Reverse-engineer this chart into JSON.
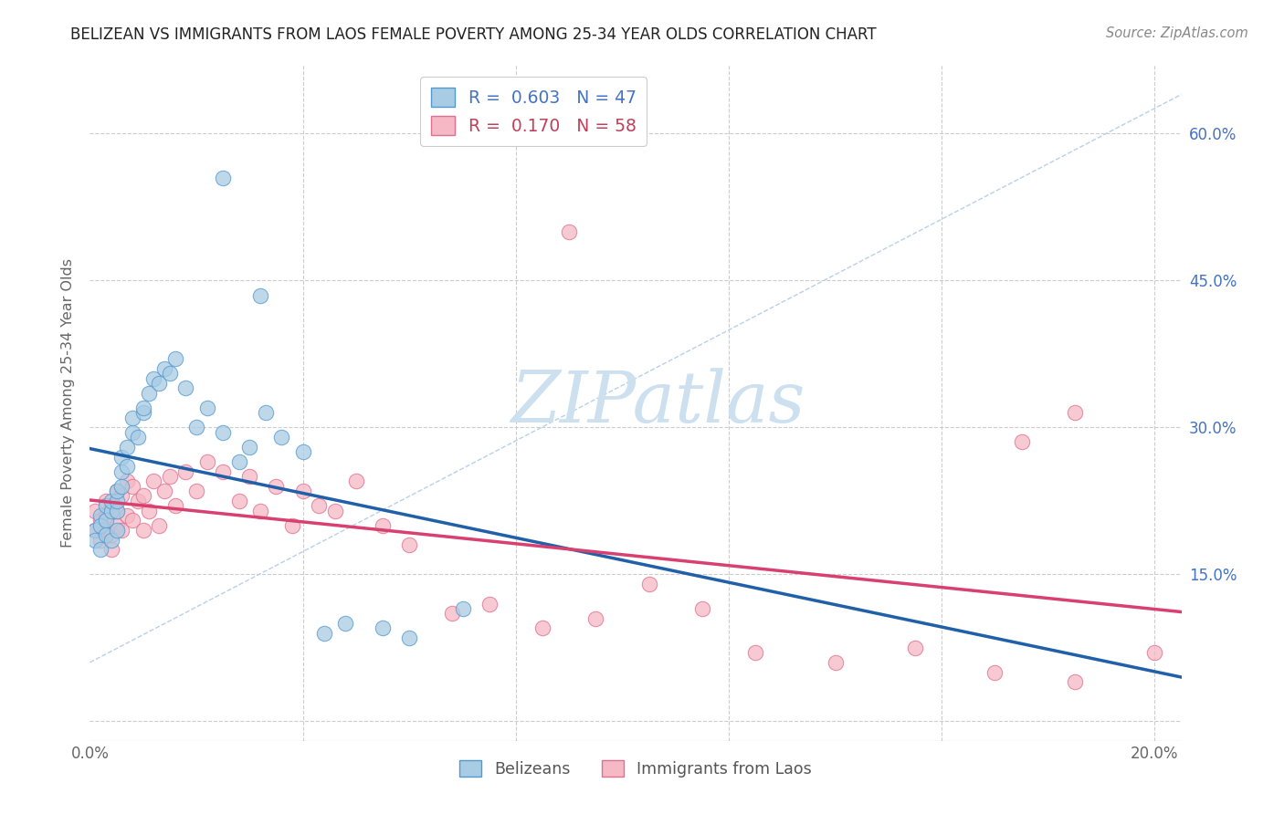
{
  "title": "BELIZEAN VS IMMIGRANTS FROM LAOS FEMALE POVERTY AMONG 25-34 YEAR OLDS CORRELATION CHART",
  "source": "Source: ZipAtlas.com",
  "ylabel": "Female Poverty Among 25-34 Year Olds",
  "r_belizean": 0.603,
  "n_belizean": 47,
  "r_laos": 0.17,
  "n_laos": 58,
  "color_belizean": "#a8cce4",
  "color_laos": "#f5b8c4",
  "edge_belizean": "#5599cc",
  "edge_laos": "#e07090",
  "line_color_belizean": "#2060a8",
  "line_color_laos": "#d84070",
  "dashed_color": "#b8d0e8",
  "watermark_color": "#ddeef8",
  "legend1_color": "#4472c4",
  "legend2_color": "#c0405a",
  "axis_label_color": "#666666",
  "tick_color": "#4472c4",
  "grid_color": "#cccccc",
  "title_color": "#222222",
  "source_color": "#888888",
  "xlim": [
    0.0,
    0.205
  ],
  "ylim": [
    -0.02,
    0.67
  ],
  "x_tick_pos": [
    0.0,
    0.04,
    0.08,
    0.12,
    0.16,
    0.2
  ],
  "x_tick_labels": [
    "0.0%",
    "",
    "",
    "",
    "",
    "20.0%"
  ],
  "y_tick_pos": [
    0.0,
    0.15,
    0.3,
    0.45,
    0.6
  ],
  "y_tick_labels_right": [
    "",
    "15.0%",
    "30.0%",
    "45.0%",
    "60.0%"
  ],
  "belizean_x": [
    0.001,
    0.001,
    0.002,
    0.002,
    0.002,
    0.003,
    0.003,
    0.003,
    0.004,
    0.004,
    0.004,
    0.005,
    0.005,
    0.005,
    0.005,
    0.006,
    0.006,
    0.006,
    0.007,
    0.007,
    0.008,
    0.008,
    0.009,
    0.01,
    0.01,
    0.011,
    0.012,
    0.013,
    0.014,
    0.015,
    0.016,
    0.018,
    0.02,
    0.022,
    0.025,
    0.028,
    0.03,
    0.033,
    0.036,
    0.04,
    0.044,
    0.048,
    0.055,
    0.06,
    0.07,
    0.025,
    0.032
  ],
  "belizean_y": [
    0.195,
    0.185,
    0.21,
    0.175,
    0.2,
    0.22,
    0.205,
    0.19,
    0.215,
    0.185,
    0.225,
    0.195,
    0.215,
    0.225,
    0.235,
    0.255,
    0.24,
    0.27,
    0.28,
    0.26,
    0.295,
    0.31,
    0.29,
    0.315,
    0.32,
    0.335,
    0.35,
    0.345,
    0.36,
    0.355,
    0.37,
    0.34,
    0.3,
    0.32,
    0.295,
    0.265,
    0.28,
    0.315,
    0.29,
    0.275,
    0.09,
    0.1,
    0.095,
    0.085,
    0.115,
    0.555,
    0.435
  ],
  "laos_x": [
    0.001,
    0.001,
    0.002,
    0.002,
    0.003,
    0.003,
    0.003,
    0.004,
    0.004,
    0.004,
    0.005,
    0.005,
    0.005,
    0.006,
    0.006,
    0.007,
    0.007,
    0.008,
    0.008,
    0.009,
    0.01,
    0.01,
    0.011,
    0.012,
    0.013,
    0.014,
    0.015,
    0.016,
    0.018,
    0.02,
    0.022,
    0.025,
    0.028,
    0.03,
    0.032,
    0.035,
    0.038,
    0.04,
    0.043,
    0.046,
    0.05,
    0.055,
    0.06,
    0.068,
    0.075,
    0.085,
    0.095,
    0.105,
    0.115,
    0.125,
    0.14,
    0.155,
    0.17,
    0.185,
    0.2,
    0.09,
    0.185,
    0.175
  ],
  "laos_y": [
    0.195,
    0.215,
    0.185,
    0.205,
    0.225,
    0.195,
    0.21,
    0.19,
    0.22,
    0.175,
    0.235,
    0.2,
    0.215,
    0.23,
    0.195,
    0.245,
    0.21,
    0.24,
    0.205,
    0.225,
    0.23,
    0.195,
    0.215,
    0.245,
    0.2,
    0.235,
    0.25,
    0.22,
    0.255,
    0.235,
    0.265,
    0.255,
    0.225,
    0.25,
    0.215,
    0.24,
    0.2,
    0.235,
    0.22,
    0.215,
    0.245,
    0.2,
    0.18,
    0.11,
    0.12,
    0.095,
    0.105,
    0.14,
    0.115,
    0.07,
    0.06,
    0.075,
    0.05,
    0.04,
    0.07,
    0.5,
    0.315,
    0.285
  ]
}
